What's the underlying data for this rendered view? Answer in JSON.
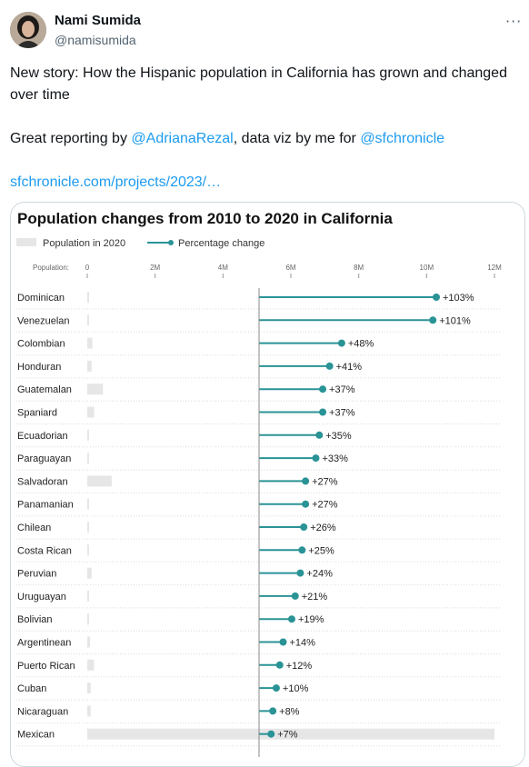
{
  "tweet": {
    "author_name": "Nami Sumida",
    "author_handle": "@namisumida",
    "more_icon": "more-icon",
    "text_line1": "New story: How the Hispanic population in California has grown and changed over time",
    "text_line2_prefix": "Great reporting by ",
    "mention1": "@AdrianaRezal",
    "text_line2_mid": ", data viz by me for ",
    "mention2": "@sfchronicle",
    "link_text": "sfchronicle.com/projects/2023/…"
  },
  "colors": {
    "accent": "#1d9bf0",
    "teal": "#2a9396",
    "bar_gray": "#e6e6e6"
  },
  "chart_data": {
    "type": "bar",
    "title": "Population changes from 2010 to 2020 in California",
    "legend": [
      "Population in 2020",
      "Percentage change"
    ],
    "population_axis_label": "Population:",
    "population_ticks": [
      "0",
      "2M",
      "4M",
      "6M",
      "8M",
      "10M",
      "12M"
    ],
    "population_ticks_values": [
      0,
      2000000,
      4000000,
      6000000,
      8000000,
      10000000,
      12000000
    ],
    "categories": [
      "Dominican",
      "Venezuelan",
      "Colombian",
      "Honduran",
      "Guatemalan",
      "Spaniard",
      "Ecuadorian",
      "Paraguayan",
      "Salvadoran",
      "Panamanian",
      "Chilean",
      "Costa Rican",
      "Peruvian",
      "Uruguayan",
      "Bolivian",
      "Argentinean",
      "Puerto Rican",
      "Cuban",
      "Nicaraguan",
      "Mexican"
    ],
    "series": [
      {
        "name": "Population in 2020",
        "values": [
          10000,
          45000,
          150000,
          130000,
          460000,
          200000,
          50000,
          5000,
          720000,
          25000,
          40000,
          40000,
          130000,
          7000,
          20000,
          80000,
          200000,
          100000,
          100000,
          12000000
        ]
      },
      {
        "name": "Percentage change",
        "values": [
          103,
          101,
          48,
          41,
          37,
          37,
          35,
          33,
          27,
          27,
          26,
          25,
          24,
          21,
          19,
          14,
          12,
          10,
          8,
          7
        ],
        "labels": [
          "+103%",
          "+101%",
          "+48%",
          "+41%",
          "+37%",
          "+37%",
          "+35%",
          "+33%",
          "+27%",
          "+27%",
          "+26%",
          "+25%",
          "+24%",
          "+21%",
          "+19%",
          "+14%",
          "+12%",
          "+10%",
          "+8%",
          "+7%"
        ]
      }
    ],
    "xlim": [
      0,
      12000000
    ]
  }
}
